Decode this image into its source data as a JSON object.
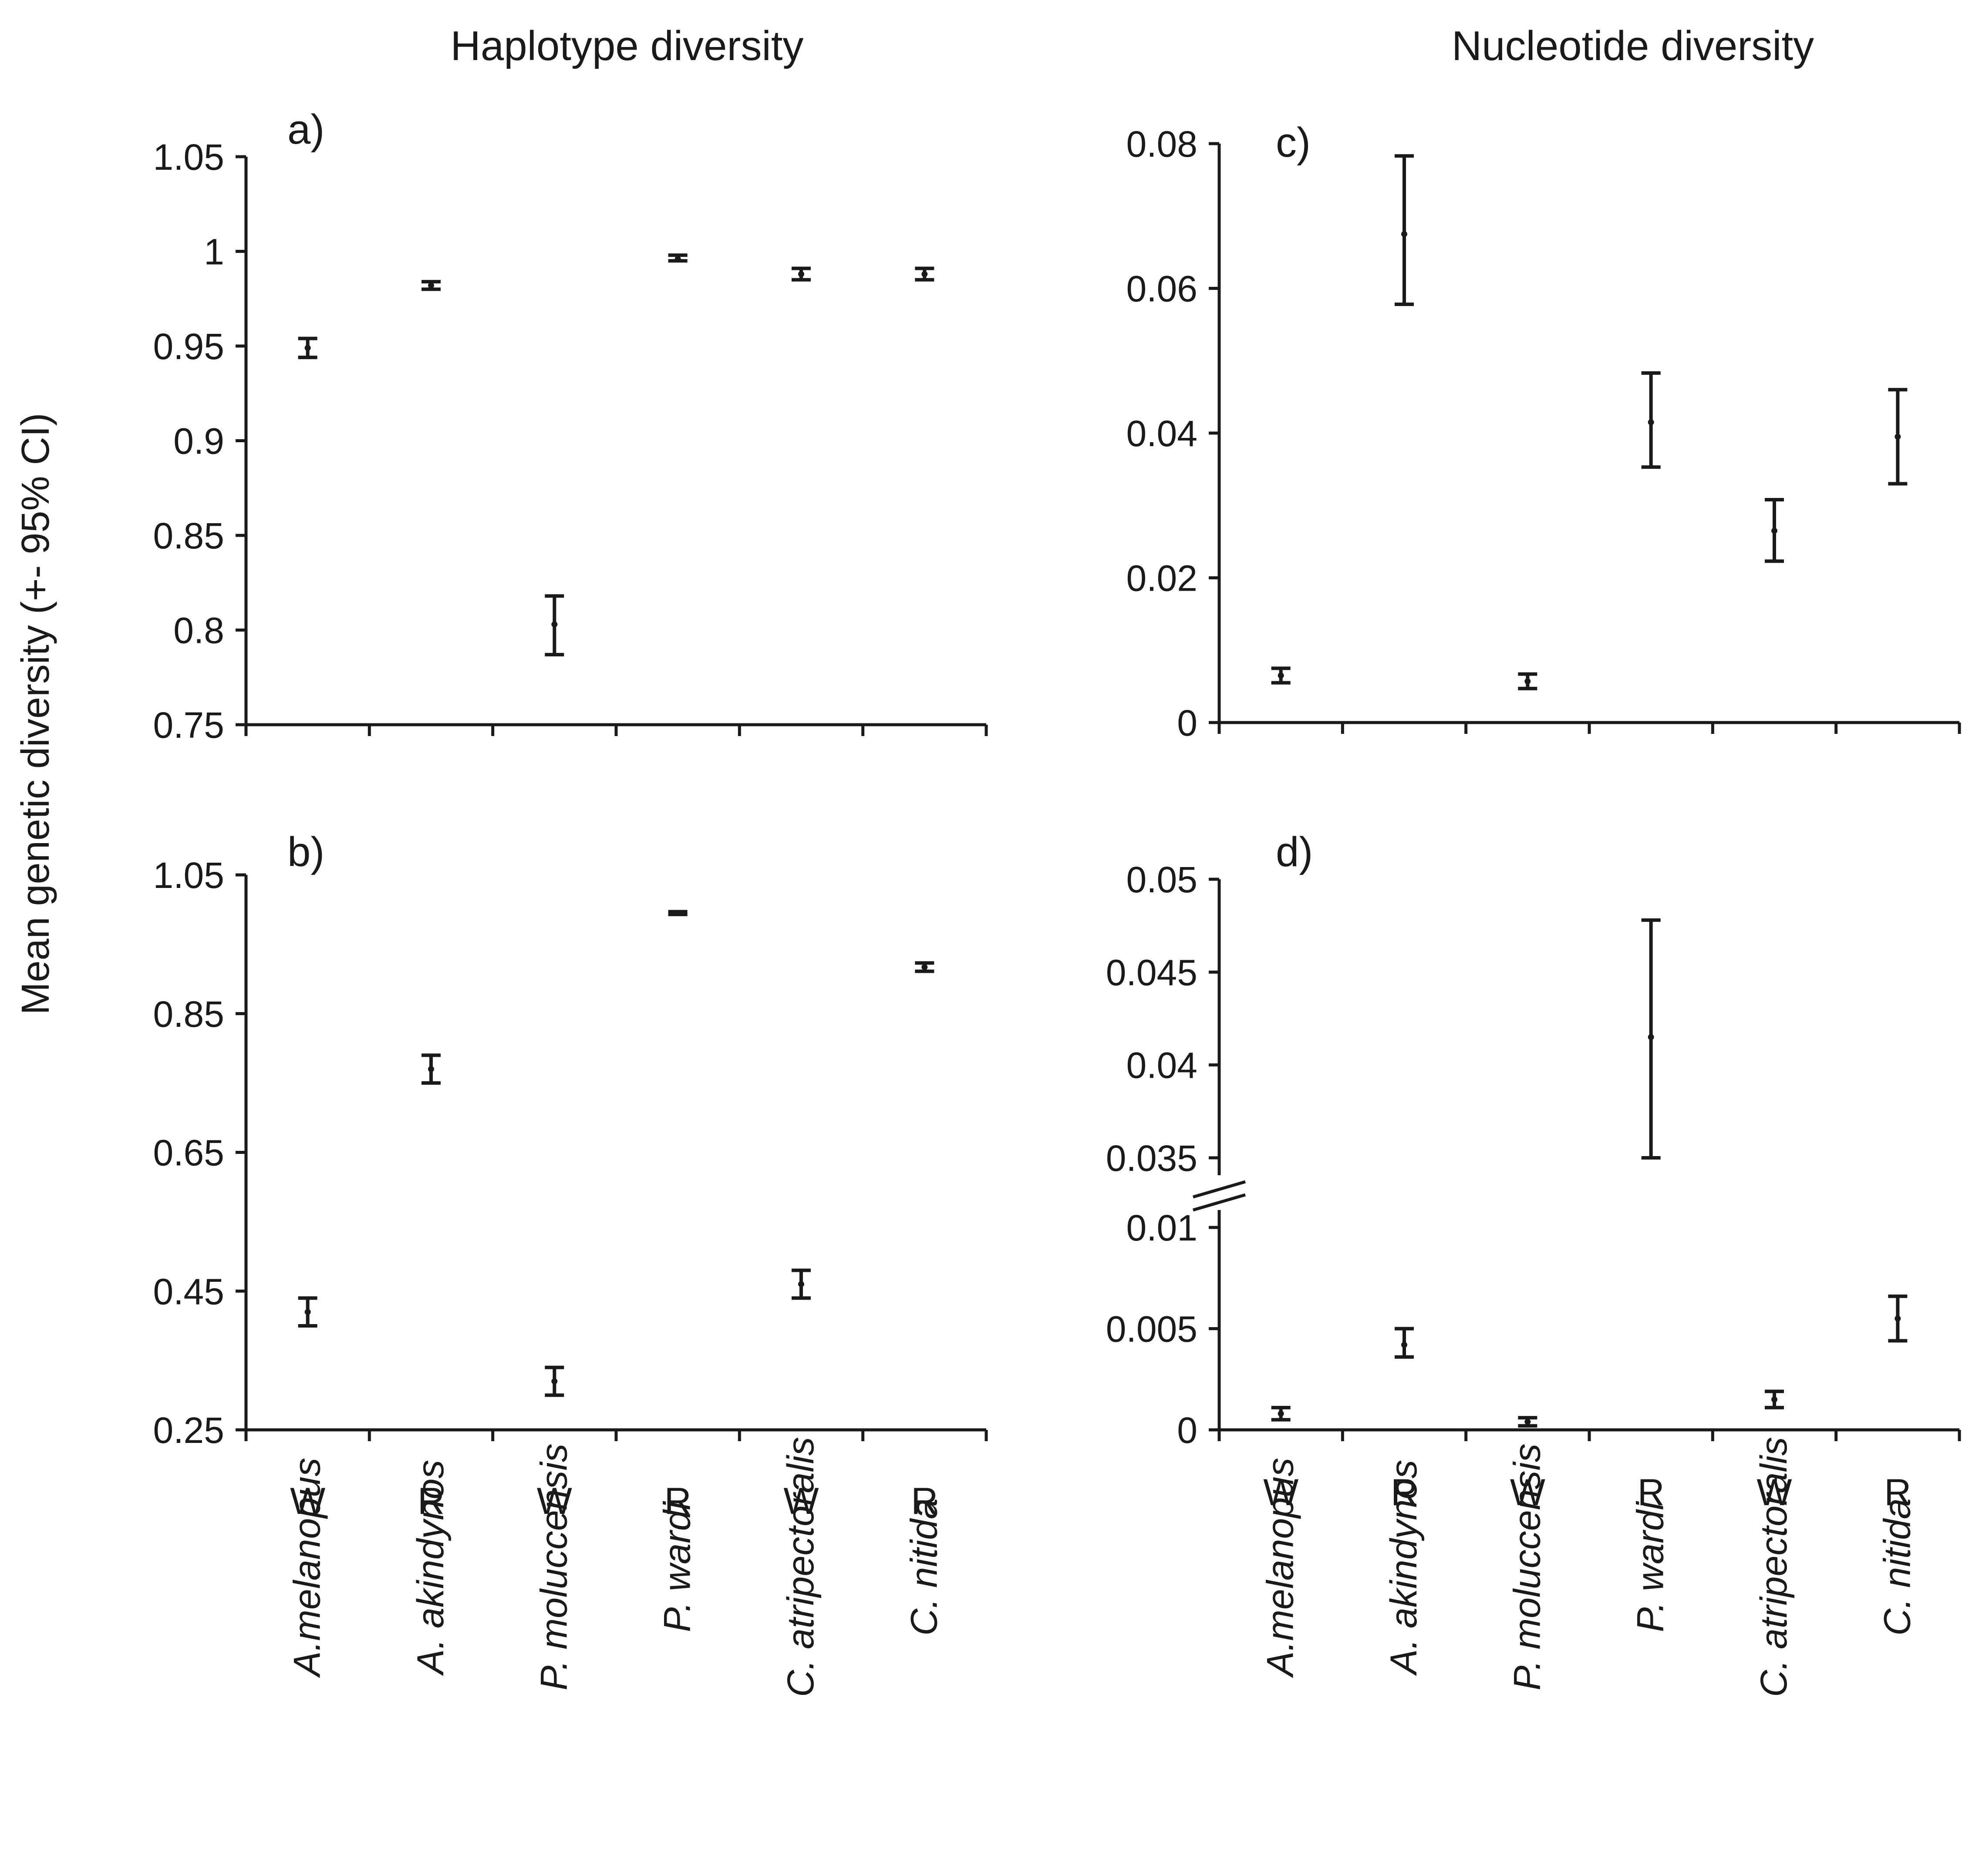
{
  "figure": {
    "y_axis_label": "Mean genetic diversity (+- 95% CI)",
    "column_titles": [
      "Haplotype diversity",
      "Nucleotide diversity"
    ]
  },
  "x_groups": [
    "W",
    "R",
    "W",
    "R",
    "W",
    "R"
  ],
  "species": [
    "A.melanopus",
    "A. akindynos",
    "P. moluccensis",
    "P. wardi",
    "C. atripectoralis",
    "C. nitida"
  ],
  "chart_data": [
    {
      "id": "a",
      "panel_label": "a)",
      "type": "scatter",
      "metric": "Haplotype diversity",
      "categories": [
        "W",
        "R",
        "W",
        "R",
        "W",
        "R"
      ],
      "species": [
        "A.melanopus",
        "A. akindynos",
        "P. moluccensis",
        "P. wardi",
        "C. atripectoralis",
        "C. nitida"
      ],
      "ylim": [
        0.75,
        1.05
      ],
      "yticks": [
        0.75,
        0.8,
        0.85,
        0.9,
        0.95,
        1,
        1.05
      ],
      "ytick_labels": [
        "0.75",
        "0.8",
        "0.85",
        "0.9",
        "0.95",
        "1",
        "1.05"
      ],
      "means": [
        0.949,
        0.982,
        0.803,
        0.996,
        0.988,
        0.988
      ],
      "ci_low": [
        0.944,
        0.98,
        0.787,
        0.995,
        0.985,
        0.985
      ],
      "ci_high": [
        0.954,
        0.984,
        0.818,
        0.998,
        0.991,
        0.991
      ]
    },
    {
      "id": "b",
      "panel_label": "b)",
      "type": "scatter",
      "metric": "Haplotype diversity",
      "categories": [
        "W",
        "R",
        "W",
        "R",
        "W",
        "R"
      ],
      "species": [
        "A.melanopus",
        "A. akindynos",
        "P. moluccensis",
        "P. wardi",
        "C. atripectoralis",
        "C. nitida"
      ],
      "ylim": [
        0.25,
        1.05
      ],
      "yticks": [
        0.25,
        0.45,
        0.65,
        0.85,
        1.05
      ],
      "ytick_labels": [
        "0.25",
        "0.45",
        "0.65",
        "0.85",
        "1.05"
      ],
      "means": [
        0.42,
        0.77,
        0.32,
        0.995,
        0.917
      ],
      "ci_low": [
        0.4,
        0.75,
        0.3,
        0.993,
        0.911
      ],
      "ci_high": [
        0.44,
        0.79,
        0.34,
        0.997,
        0.923
      ],
      "missing_categories": [
        4
      ],
      "extra_points": [
        {
          "index": 4,
          "mean": 0.46,
          "ci_low": 0.44,
          "ci_high": 0.48
        }
      ]
    },
    {
      "id": "c",
      "panel_label": "c)",
      "type": "scatter",
      "metric": "Nucleotide diversity",
      "categories": [
        "W",
        "R",
        "W",
        "R",
        "W",
        "R"
      ],
      "species": [
        "A.melanopus",
        "A. akindynos",
        "P. moluccensis",
        "P. wardi",
        "C. atripectoralis",
        "C. nitida"
      ],
      "ylim": [
        0,
        0.08
      ],
      "yticks": [
        0,
        0.02,
        0.04,
        0.06,
        0.08
      ],
      "ytick_labels": [
        "0",
        "0.02",
        "0.04",
        "0.06",
        "0.08"
      ],
      "means": [
        0.0065,
        0.0675,
        0.0057,
        0.0415,
        0.0265,
        0.0395
      ],
      "ci_low": [
        0.0055,
        0.0578,
        0.0047,
        0.0353,
        0.0223,
        0.033
      ],
      "ci_high": [
        0.0075,
        0.0783,
        0.0067,
        0.0483,
        0.0308,
        0.046
      ]
    },
    {
      "id": "d",
      "panel_label": "d)",
      "type": "scatter",
      "metric": "Nucleotide diversity",
      "categories": [
        "W",
        "R",
        "W",
        "R",
        "W",
        "R"
      ],
      "species": [
        "A.melanopus",
        "A. akindynos",
        "P. moluccensis",
        "P. wardi",
        "C. atripectoralis",
        "C. nitida"
      ],
      "axis_break": {
        "lower_range": [
          0,
          0.01
        ],
        "upper_range": [
          0.035,
          0.05
        ]
      },
      "yticks": [
        0,
        0.005,
        0.01,
        0.035,
        0.04,
        0.045,
        0.05
      ],
      "ytick_labels": [
        "0",
        "0.005",
        "0.01",
        "0.035",
        "0.04",
        "0.045",
        "0.05"
      ],
      "means": [
        0.0008,
        0.0042,
        0.0004,
        0.0415,
        0.0015,
        0.0055
      ],
      "ci_low": [
        0.0005,
        0.0036,
        0.0002,
        0.035,
        0.0011,
        0.0044
      ],
      "ci_high": [
        0.0011,
        0.005,
        0.0006,
        0.0478,
        0.0019,
        0.0066
      ]
    }
  ]
}
